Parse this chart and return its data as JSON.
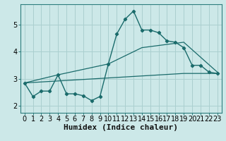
{
  "xlabel": "Humidex (Indice chaleur)",
  "background_color": "#cce8e8",
  "grid_color": "#aacfcf",
  "line_color": "#1a6b6b",
  "spine_color": "#2d7d7d",
  "xlim": [
    -0.5,
    23.5
  ],
  "ylim": [
    1.75,
    5.75
  ],
  "xticks": [
    0,
    1,
    2,
    3,
    4,
    5,
    6,
    7,
    8,
    9,
    10,
    11,
    12,
    13,
    14,
    15,
    16,
    17,
    18,
    19,
    20,
    21,
    22,
    23
  ],
  "yticks": [
    2,
    3,
    4,
    5
  ],
  "curve1_x": [
    0,
    1,
    2,
    3,
    4,
    5,
    6,
    7,
    8,
    9,
    10,
    11,
    12,
    13,
    14,
    15,
    16,
    17,
    18,
    19,
    20,
    21,
    22,
    23
  ],
  "curve1_y": [
    2.85,
    2.35,
    2.55,
    2.55,
    3.15,
    2.45,
    2.45,
    2.38,
    2.2,
    2.35,
    3.55,
    4.65,
    5.2,
    5.5,
    4.8,
    4.8,
    4.7,
    4.4,
    4.35,
    4.15,
    3.5,
    3.5,
    3.25,
    3.2
  ],
  "curve2_x": [
    0,
    4,
    10,
    14,
    19,
    23
  ],
  "curve2_y": [
    2.85,
    3.15,
    3.55,
    4.15,
    4.35,
    3.25
  ],
  "curve3_x": [
    0,
    19,
    23
  ],
  "curve3_y": [
    2.85,
    3.2,
    3.2
  ],
  "xlabel_fontsize": 8,
  "tick_fontsize": 7
}
